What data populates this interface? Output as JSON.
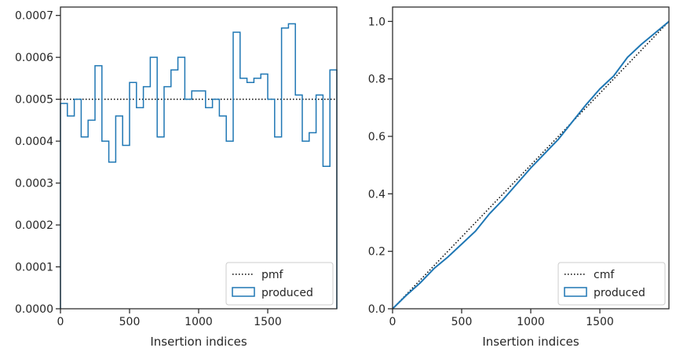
{
  "chart_data": [
    {
      "type": "line",
      "xlabel": "Insertion indices",
      "ylabel": "",
      "xlim": [
        0,
        2000
      ],
      "ylim": [
        0,
        0.00072
      ],
      "xticks": [
        0,
        500,
        1000,
        1500
      ],
      "xtick_labels": [
        "0",
        "500",
        "1000",
        "1500"
      ],
      "yticks": [
        0,
        0.0001,
        0.0002,
        0.0003,
        0.0004,
        0.0005,
        0.0006,
        0.0007
      ],
      "ytick_labels": [
        "0.0000",
        "0.0001",
        "0.0002",
        "0.0003",
        "0.0004",
        "0.0005",
        "0.0006",
        "0.0007"
      ],
      "grid": false,
      "legend_position": "lower-right",
      "series": [
        {
          "name": "pmf",
          "style": "dotted",
          "color": "#000000",
          "x": [
            0,
            2000
          ],
          "y": [
            0.0005,
            0.0005
          ]
        },
        {
          "name": "produced",
          "style": "step",
          "color": "#1f77b4",
          "bin_width": 50,
          "bin_edges_start": 0,
          "values": [
            0.00049,
            0.00046,
            0.0005,
            0.00041,
            0.00045,
            0.00058,
            0.0004,
            0.00035,
            0.00046,
            0.00039,
            0.00054,
            0.00048,
            0.00053,
            0.0006,
            0.00041,
            0.00053,
            0.00057,
            0.0006,
            0.0005,
            0.00052,
            0.00052,
            0.00048,
            0.0005,
            0.00046,
            0.0004,
            0.00066,
            0.00055,
            0.00054,
            0.00055,
            0.00056,
            0.0005,
            0.00041,
            0.00067,
            0.00068,
            0.00051,
            0.0004,
            0.00042,
            0.00051,
            0.00034,
            0.00057
          ]
        }
      ]
    },
    {
      "type": "line",
      "xlabel": "Insertion indices",
      "ylabel": "",
      "xlim": [
        0,
        2000
      ],
      "ylim": [
        0,
        1.05
      ],
      "xticks": [
        0,
        500,
        1000,
        1500
      ],
      "xtick_labels": [
        "0",
        "500",
        "1000",
        "1500"
      ],
      "yticks": [
        0,
        0.2,
        0.4,
        0.6,
        0.8,
        1.0
      ],
      "ytick_labels": [
        "0.0",
        "0.2",
        "0.4",
        "0.6",
        "0.8",
        "1.0"
      ],
      "grid": false,
      "legend_position": "lower-right",
      "series": [
        {
          "name": "cmf",
          "style": "dotted",
          "color": "#000000",
          "x": [
            0,
            2000
          ],
          "y": [
            0,
            1
          ]
        },
        {
          "name": "produced",
          "style": "line",
          "color": "#1f77b4",
          "x": [
            0,
            100,
            200,
            300,
            400,
            500,
            600,
            700,
            800,
            900,
            1000,
            1100,
            1200,
            1300,
            1400,
            1500,
            1600,
            1700,
            1800,
            1900,
            2000
          ],
          "y": [
            0,
            0.047,
            0.09,
            0.14,
            0.18,
            0.225,
            0.27,
            0.33,
            0.38,
            0.435,
            0.49,
            0.54,
            0.59,
            0.65,
            0.71,
            0.765,
            0.81,
            0.875,
            0.92,
            0.96,
            1.0
          ]
        }
      ]
    }
  ]
}
